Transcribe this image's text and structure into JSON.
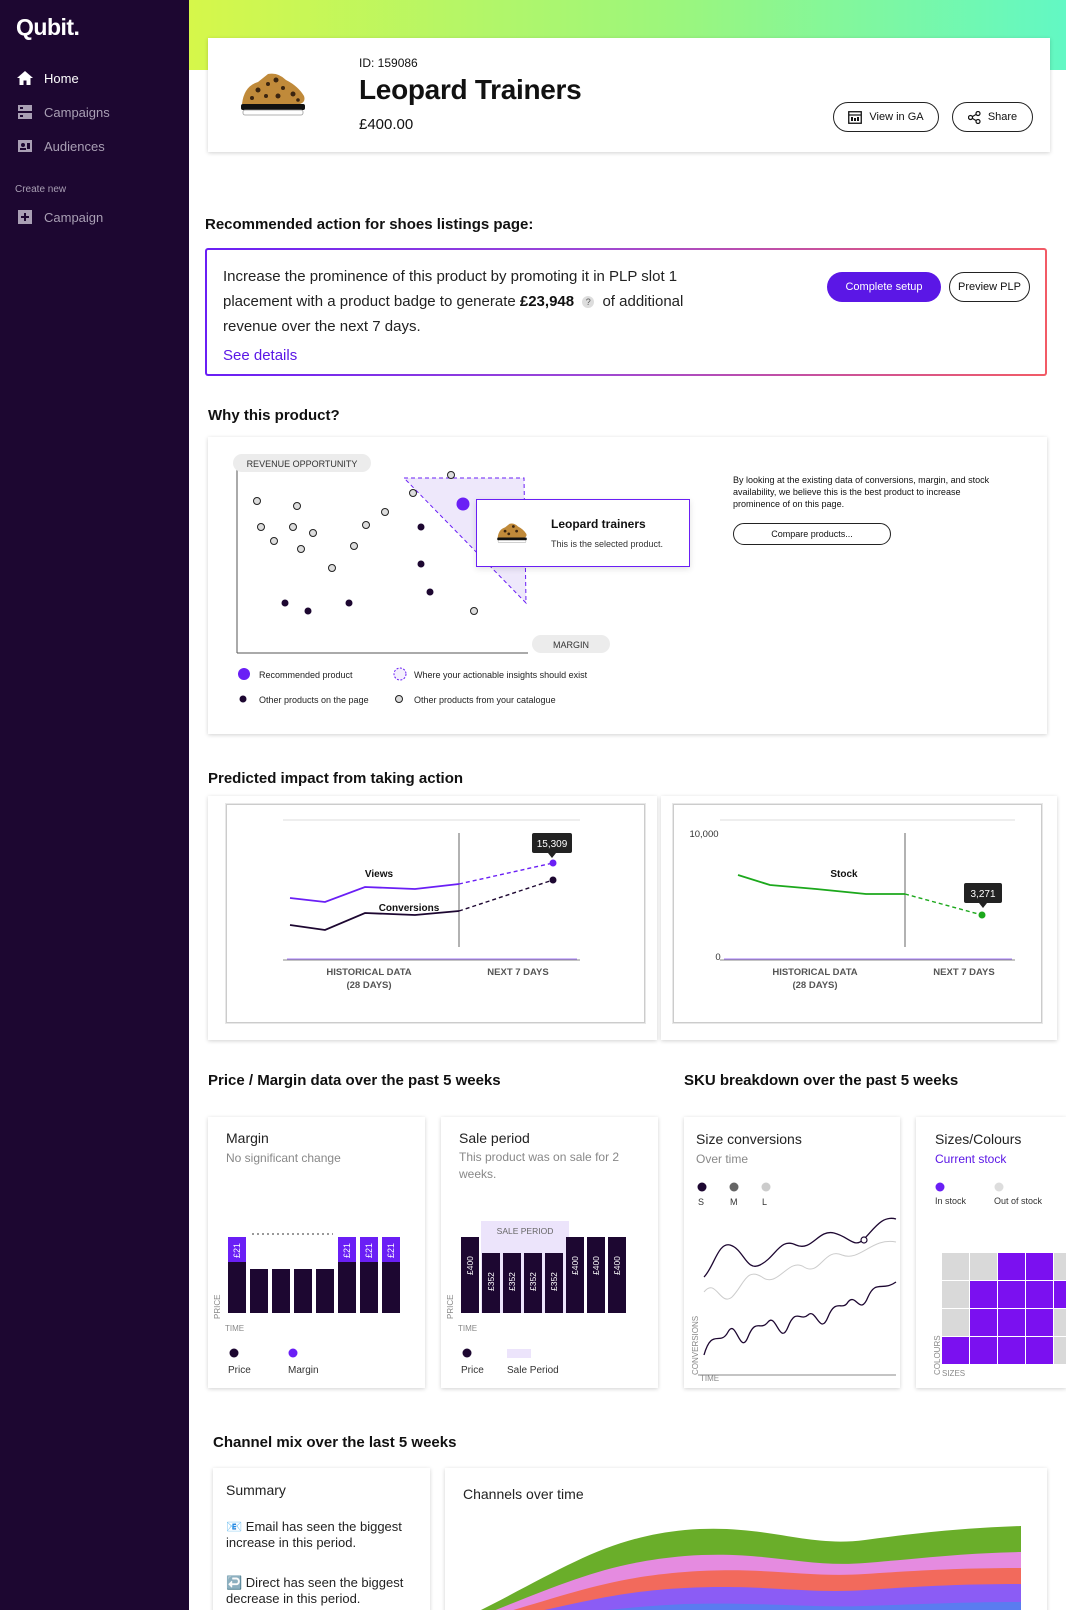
{
  "sidebar": {
    "logo": "Qubit.",
    "items": [
      {
        "label": "Home",
        "icon": "home-icon"
      },
      {
        "label": "Campaigns",
        "icon": "campaigns-icon"
      },
      {
        "label": "Audiences",
        "icon": "audiences-icon"
      }
    ],
    "section_label": "Create new",
    "create_items": [
      {
        "label": "Campaign",
        "icon": "plus-square-icon"
      }
    ]
  },
  "product": {
    "id_label": "ID: 159086",
    "name": "Leopard Trainers",
    "price": "£400.00",
    "view_ga_label": "View in GA",
    "share_label": "Share"
  },
  "recommendation": {
    "heading": "Recommended action for shoes listings page:",
    "text_before": "Increase the prominence of this product by promoting it in PLP slot 1 placement with a product badge to generate",
    "amount": "£23,948",
    "help": "?",
    "text_after": "of additional revenue over the next 7 days.",
    "see_details": "See details",
    "complete_setup": "Complete setup",
    "preview_plp": "Preview PLP"
  },
  "why": {
    "heading": "Why this product?",
    "y_axis_label": "REVENUE OPPORTUNITY",
    "x_axis_label": "MARGIN",
    "popup_title": "Leopard trainers",
    "popup_sub": "This is the selected product.",
    "description": "By looking at the existing data of conversions, margin, and stock availability, we believe this is the best product to increase prominence of on this page.",
    "compare_button": "Compare products...",
    "legend": {
      "recommended": "Recommended product",
      "actionable": "Where your actionable insights should exist",
      "page_products": "Other products on the page",
      "catalogue_products": "Other products from your catalogue"
    }
  },
  "impact": {
    "heading": "Predicted impact from taking action",
    "historical_label_1": "HISTORICAL DATA",
    "historical_label_2": "(28 DAYS)",
    "next_label": "NEXT 7 DAYS",
    "views_label": "Views",
    "conversions_label": "Conversions",
    "views_callout": "15,309",
    "stock_label": "Stock",
    "stock_callout": "3,271",
    "stock_y_max": "10,000",
    "stock_y_min": "0"
  },
  "price_margin": {
    "heading": "Price / Margin data over the past 5 weeks",
    "margin_title": "Margin",
    "margin_sub": "No significant change",
    "margin_bar_labels": [
      "£21",
      "£21",
      "£21",
      "£21"
    ],
    "sale_title": "Sale period",
    "sale_sub": "This product was on sale for 2 weeks.",
    "sale_period_label": "SALE PERIOD",
    "sale_bar_labels": [
      "£400",
      "£352",
      "£352",
      "£352",
      "£352",
      "£400",
      "£400",
      "£400"
    ],
    "price_axis": "PRICE",
    "time_axis": "TIME",
    "legend_price": "Price",
    "legend_margin": "Margin",
    "legend_sale": "Sale Period"
  },
  "sku": {
    "heading": "SKU breakdown over the past 5 weeks",
    "size_title": "Size conversions",
    "size_sub": "Over time",
    "size_legend": [
      "S",
      "M",
      "L"
    ],
    "conversions_axis": "CONVERSIONS",
    "time_axis": "TIME",
    "colours_title": "Sizes/Colours",
    "colours_sub": "Current stock",
    "in_stock": "In stock",
    "out_of_stock": "Out of stock",
    "colours_axis": "COLOURS",
    "sizes_axis": "SIZES"
  },
  "channel": {
    "heading": "Channel mix over the last 5 weeks",
    "summary_title": "Summary",
    "summary_1": "📧 Email has seen the biggest increase in this period.",
    "summary_2": "↩️ Direct has seen the biggest decrease in this period.",
    "channels_title": "Channels over time"
  },
  "colors": {
    "sidebar_bg": "#1d0731",
    "accent": "#5b17e6",
    "stock_green": "#1ca81c"
  }
}
